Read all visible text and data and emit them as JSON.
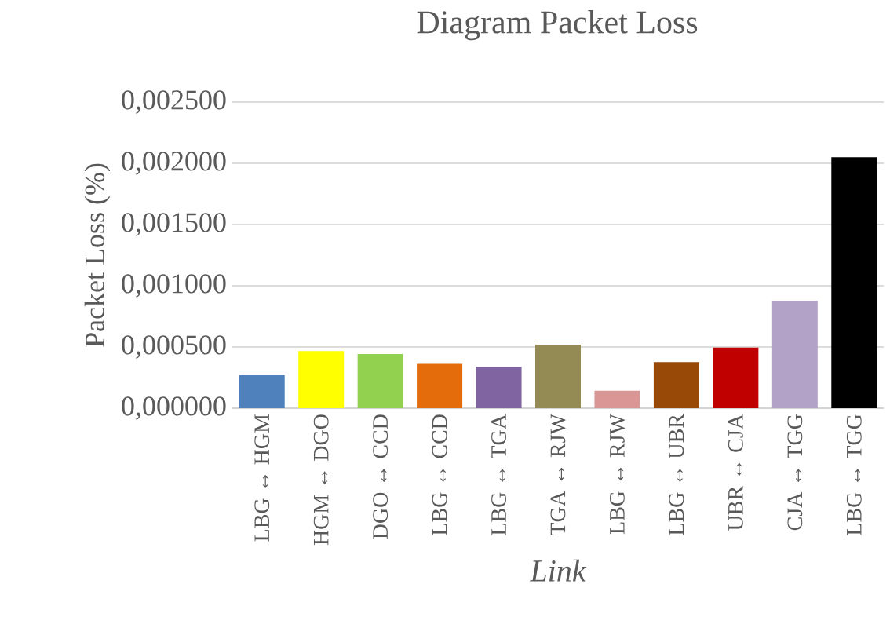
{
  "chart_data": {
    "type": "bar",
    "title": "Diagram Packet Loss",
    "xlabel": "Link",
    "ylabel": "Packet Loss (%)",
    "categories": [
      "LBG ↔ HGM",
      "HGM ↔ DGO",
      "DGO ↔ CCD",
      "LBG ↔ CCD",
      "LBG ↔ TGA",
      "TGA ↔ RJW",
      "LBG ↔ RJW",
      "LBG ↔ UBR",
      "UBR ↔ CJA",
      "CJA ↔ TGG",
      "LBG ↔ TGG"
    ],
    "values": [
      0.00027,
      0.000467,
      0.000443,
      0.000362,
      0.000338,
      0.000519,
      0.000143,
      0.000376,
      0.000495,
      0.000876,
      0.00205
    ],
    "colors": [
      "#4f81bd",
      "#ffff00",
      "#92d050",
      "#e46c0a",
      "#8064a2",
      "#948a54",
      "#d99694",
      "#984807",
      "#c00000",
      "#b2a2c7",
      "#000000"
    ],
    "ylim": [
      0,
      0.0025
    ],
    "yticks": [
      {
        "value": 0,
        "label": "0,000000"
      },
      {
        "value": 0.0005,
        "label": "0,000500"
      },
      {
        "value": 0.001,
        "label": "0,001000"
      },
      {
        "value": 0.0015,
        "label": "0,001500"
      },
      {
        "value": 0.002,
        "label": "0,002000"
      },
      {
        "value": 0.0025,
        "label": "0,002500"
      }
    ],
    "grid": "y"
  }
}
